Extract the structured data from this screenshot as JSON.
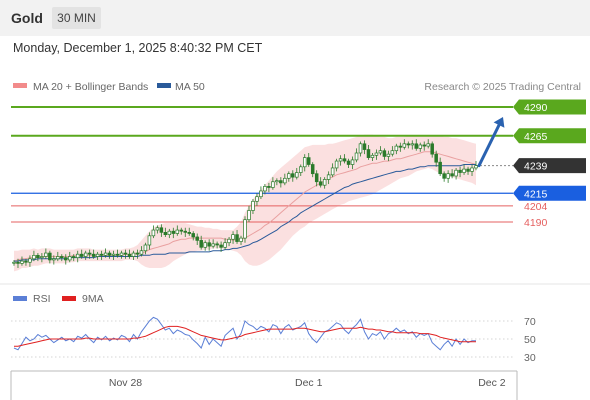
{
  "header": {
    "symbol": "Gold",
    "timeframe": "30 MIN",
    "datetime": "Monday, December 1, 2025 8:40:32 PM CET"
  },
  "credit": "Research © 2025 Trading Central",
  "colors": {
    "bb_band": "#f7c6c6",
    "bb_legend": "#f28b8b",
    "ma20": "#e9a0a0",
    "ma50": "#2a5a9a",
    "resistance": "#5aa81e",
    "support": "#1a5fe0",
    "weak_support": "#e56060",
    "current_price": "#333333",
    "arrow": "#2a62b0",
    "rsi": "#5b7fd6",
    "rsi_ma": "#e02020",
    "candle": "#2a7a2a"
  },
  "chart_data": [
    {
      "type": "line",
      "title": "",
      "legend": [
        {
          "name": "MA 20 + Bollinger Bands",
          "color": "#f28b8b"
        },
        {
          "name": "MA 50",
          "color": "#2a5a9a"
        }
      ],
      "x_ticks": [
        {
          "label": "Nov 28",
          "index": 28
        },
        {
          "label": "Dec 1",
          "index": 74
        },
        {
          "label": "Dec 2",
          "index": 120
        }
      ],
      "ylim": [
        4140,
        4300
      ],
      "price_levels": [
        {
          "label": "4290",
          "value": 4290,
          "kind": "resistance"
        },
        {
          "label": "4265",
          "value": 4265,
          "kind": "resistance"
        },
        {
          "label": "4239",
          "value": 4239,
          "kind": "current"
        },
        {
          "label": "4215",
          "value": 4215,
          "kind": "support"
        },
        {
          "label": "4204",
          "value": 4204,
          "kind": "weak_support"
        },
        {
          "label": "4190",
          "value": 4190,
          "kind": "weak_support"
        }
      ],
      "close": [
        4155,
        4154,
        4156,
        4155,
        4158,
        4161,
        4159,
        4160,
        4163,
        4157,
        4158,
        4160,
        4159,
        4157,
        4160,
        4159,
        4162,
        4160,
        4163,
        4162,
        4160,
        4162,
        4161,
        4163,
        4161,
        4162,
        4161,
        4163,
        4162,
        4160,
        4163,
        4162,
        4165,
        4170,
        4178,
        4183,
        4185,
        4181,
        4179,
        4182,
        4180,
        4183,
        4182,
        4181,
        4180,
        4177,
        4174,
        4168,
        4172,
        4169,
        4171,
        4170,
        4168,
        4172,
        4175,
        4179,
        4173,
        4176,
        4192,
        4200,
        4208,
        4212,
        4217,
        4221,
        4220,
        4225,
        4226,
        4224,
        4228,
        4232,
        4229,
        4233,
        4238,
        4246,
        4240,
        4232,
        4225,
        4222,
        4227,
        4231,
        4237,
        4243,
        4245,
        4243,
        4240,
        4244,
        4250,
        4258,
        4253,
        4246,
        4248,
        4250,
        4252,
        4247,
        4249,
        4252,
        4256,
        4255,
        4258,
        4257,
        4258,
        4254,
        4257,
        4256,
        4258,
        4249,
        4242,
        4232,
        4228,
        4232,
        4230,
        4235,
        4233,
        4236,
        4234,
        4237,
        4239
      ],
      "ma20": [
        4156,
        4157,
        4158,
        4158,
        4159,
        4159,
        4159,
        4160,
        4160,
        4160,
        4160,
        4160,
        4160,
        4160,
        4160,
        4161,
        4161,
        4161,
        4161,
        4161,
        4161,
        4161,
        4161,
        4161,
        4161,
        4161,
        4161,
        4161,
        4162,
        4162,
        4162,
        4163,
        4163,
        4164,
        4166,
        4167,
        4168,
        4169,
        4170,
        4171,
        4173,
        4174,
        4175,
        4175,
        4176,
        4176,
        4176,
        4176,
        4176,
        4176,
        4176,
        4176,
        4176,
        4175,
        4175,
        4174,
        4175,
        4175,
        4176,
        4178,
        4180,
        4182,
        4184,
        4187,
        4189,
        4192,
        4195,
        4198,
        4201,
        4204,
        4207,
        4210,
        4213,
        4216,
        4218,
        4220,
        4222,
        4224,
        4226,
        4228,
        4229,
        4231,
        4232,
        4233,
        4234,
        4235,
        4236,
        4238,
        4239,
        4240,
        4241,
        4241,
        4242,
        4243,
        4243,
        4244,
        4245,
        4245,
        4246,
        4247,
        4248,
        4249,
        4250,
        4251,
        4251,
        4251,
        4250,
        4249,
        4248,
        4247,
        4246,
        4245,
        4244,
        4243,
        4242,
        4241,
        4240
      ],
      "bb_upper": [
        4165,
        4165,
        4166,
        4166,
        4166,
        4167,
        4166,
        4167,
        4167,
        4167,
        4166,
        4166,
        4166,
        4166,
        4166,
        4166,
        4167,
        4167,
        4167,
        4167,
        4166,
        4166,
        4166,
        4166,
        4166,
        4166,
        4166,
        4166,
        4167,
        4167,
        4168,
        4170,
        4174,
        4178,
        4182,
        4185,
        4187,
        4188,
        4189,
        4189,
        4189,
        4189,
        4189,
        4189,
        4188,
        4187,
        4186,
        4186,
        4185,
        4185,
        4184,
        4184,
        4183,
        4183,
        4183,
        4183,
        4186,
        4190,
        4198,
        4204,
        4210,
        4214,
        4218,
        4222,
        4226,
        4230,
        4234,
        4237,
        4240,
        4243,
        4246,
        4249,
        4252,
        4255,
        4256,
        4257,
        4257,
        4257,
        4257,
        4258,
        4258,
        4259,
        4260,
        4261,
        4262,
        4263,
        4264,
        4265,
        4266,
        4266,
        4266,
        4265,
        4264,
        4264,
        4263,
        4263,
        4264,
        4264,
        4264,
        4265,
        4265,
        4265,
        4265,
        4265,
        4265,
        4265,
        4265,
        4265,
        4264,
        4264,
        4263,
        4263,
        4262,
        4261,
        4260,
        4259,
        4258
      ],
      "bb_lower": [
        4147,
        4148,
        4150,
        4150,
        4151,
        4152,
        4152,
        4153,
        4154,
        4154,
        4154,
        4154,
        4154,
        4154,
        4155,
        4155,
        4156,
        4156,
        4156,
        4156,
        4156,
        4156,
        4156,
        4156,
        4156,
        4156,
        4156,
        4156,
        4157,
        4157,
        4157,
        4156,
        4153,
        4151,
        4150,
        4150,
        4150,
        4150,
        4151,
        4153,
        4156,
        4158,
        4160,
        4162,
        4163,
        4164,
        4165,
        4165,
        4166,
        4166,
        4167,
        4167,
        4167,
        4166,
        4166,
        4165,
        4164,
        4161,
        4156,
        4153,
        4152,
        4152,
        4153,
        4155,
        4157,
        4160,
        4163,
        4166,
        4170,
        4174,
        4178,
        4181,
        4184,
        4186,
        4189,
        4191,
        4193,
        4195,
        4197,
        4199,
        4201,
        4203,
        4205,
        4206,
        4208,
        4209,
        4210,
        4211,
        4212,
        4213,
        4214,
        4216,
        4218,
        4220,
        4222,
        4224,
        4226,
        4228,
        4229,
        4230,
        4232,
        4234,
        4235,
        4236,
        4237,
        4236,
        4234,
        4232,
        4231,
        4230,
        4229,
        4228,
        4227,
        4226,
        4225,
        4224,
        4222
      ],
      "ma50": [
        4156,
        4156,
        4157,
        4157,
        4157,
        4157,
        4158,
        4158,
        4158,
        4158,
        4158,
        4158,
        4158,
        4158,
        4159,
        4159,
        4159,
        4159,
        4159,
        4159,
        4159,
        4160,
        4160,
        4160,
        4160,
        4160,
        4160,
        4160,
        4160,
        4160,
        4160,
        4160,
        4161,
        4161,
        4161,
        4162,
        4162,
        4162,
        4162,
        4163,
        4163,
        4163,
        4163,
        4163,
        4164,
        4164,
        4164,
        4164,
        4164,
        4164,
        4165,
        4165,
        4165,
        4166,
        4166,
        4167,
        4167,
        4168,
        4169,
        4170,
        4172,
        4173,
        4175,
        4177,
        4179,
        4181,
        4183,
        4186,
        4188,
        4190,
        4193,
        4195,
        4198,
        4200,
        4202,
        4204,
        4206,
        4208,
        4210,
        4212,
        4214,
        4216,
        4218,
        4220,
        4221,
        4223,
        4224,
        4225,
        4226,
        4227,
        4228,
        4229,
        4230,
        4231,
        4232,
        4233,
        4234,
        4234,
        4235,
        4236,
        4236,
        4237,
        4238,
        4238,
        4239,
        4239,
        4239,
        4239,
        4239,
        4239,
        4239,
        4239,
        4239,
        4240,
        4240,
        4240,
        4240
      ]
    },
    {
      "type": "line",
      "title": "",
      "legend": [
        {
          "name": "RSI",
          "color": "#5b7fd6"
        },
        {
          "name": "9MA",
          "color": "#e02020"
        }
      ],
      "ylim": [
        20,
        80
      ],
      "y_ticks": [
        "70",
        "50",
        "30"
      ],
      "rsi": [
        40,
        38,
        45,
        52,
        48,
        50,
        55,
        52,
        54,
        50,
        46,
        49,
        52,
        48,
        50,
        47,
        53,
        51,
        55,
        50,
        46,
        52,
        49,
        53,
        48,
        51,
        49,
        54,
        52,
        47,
        55,
        50,
        58,
        64,
        70,
        74,
        72,
        66,
        60,
        62,
        56,
        60,
        58,
        55,
        54,
        49,
        45,
        40,
        52,
        44,
        50,
        46,
        42,
        54,
        58,
        62,
        50,
        56,
        70,
        66,
        64,
        60,
        64,
        62,
        58,
        66,
        64,
        56,
        63,
        66,
        60,
        62,
        64,
        68,
        56,
        50,
        46,
        52,
        58,
        60,
        64,
        68,
        66,
        60,
        56,
        62,
        66,
        72,
        58,
        50,
        56,
        54,
        58,
        50,
        56,
        58,
        62,
        58,
        60,
        56,
        58,
        52,
        56,
        54,
        56,
        46,
        42,
        38,
        44,
        48,
        42,
        50,
        44,
        50,
        46,
        48,
        48
      ],
      "ma9": [
        42,
        42,
        43,
        44,
        45,
        46,
        47,
        48,
        49,
        50,
        50,
        50,
        50,
        50,
        50,
        50,
        50,
        50,
        51,
        51,
        50,
        50,
        50,
        50,
        50,
        50,
        50,
        50,
        50,
        50,
        51,
        51,
        52,
        53,
        55,
        57,
        59,
        61,
        63,
        64,
        64,
        64,
        63,
        62,
        60,
        58,
        56,
        54,
        53,
        52,
        51,
        50,
        49,
        49,
        50,
        51,
        52,
        53,
        55,
        56,
        57,
        58,
        59,
        60,
        61,
        61,
        61,
        61,
        61,
        61,
        61,
        62,
        62,
        62,
        61,
        60,
        59,
        58,
        58,
        59,
        60,
        61,
        62,
        62,
        62,
        62,
        62,
        63,
        62,
        61,
        61,
        60,
        60,
        59,
        58,
        58,
        57,
        57,
        57,
        57,
        57,
        57,
        56,
        56,
        56,
        55,
        54,
        52,
        51,
        50,
        49,
        48,
        47,
        47,
        47,
        47,
        47
      ]
    }
  ]
}
